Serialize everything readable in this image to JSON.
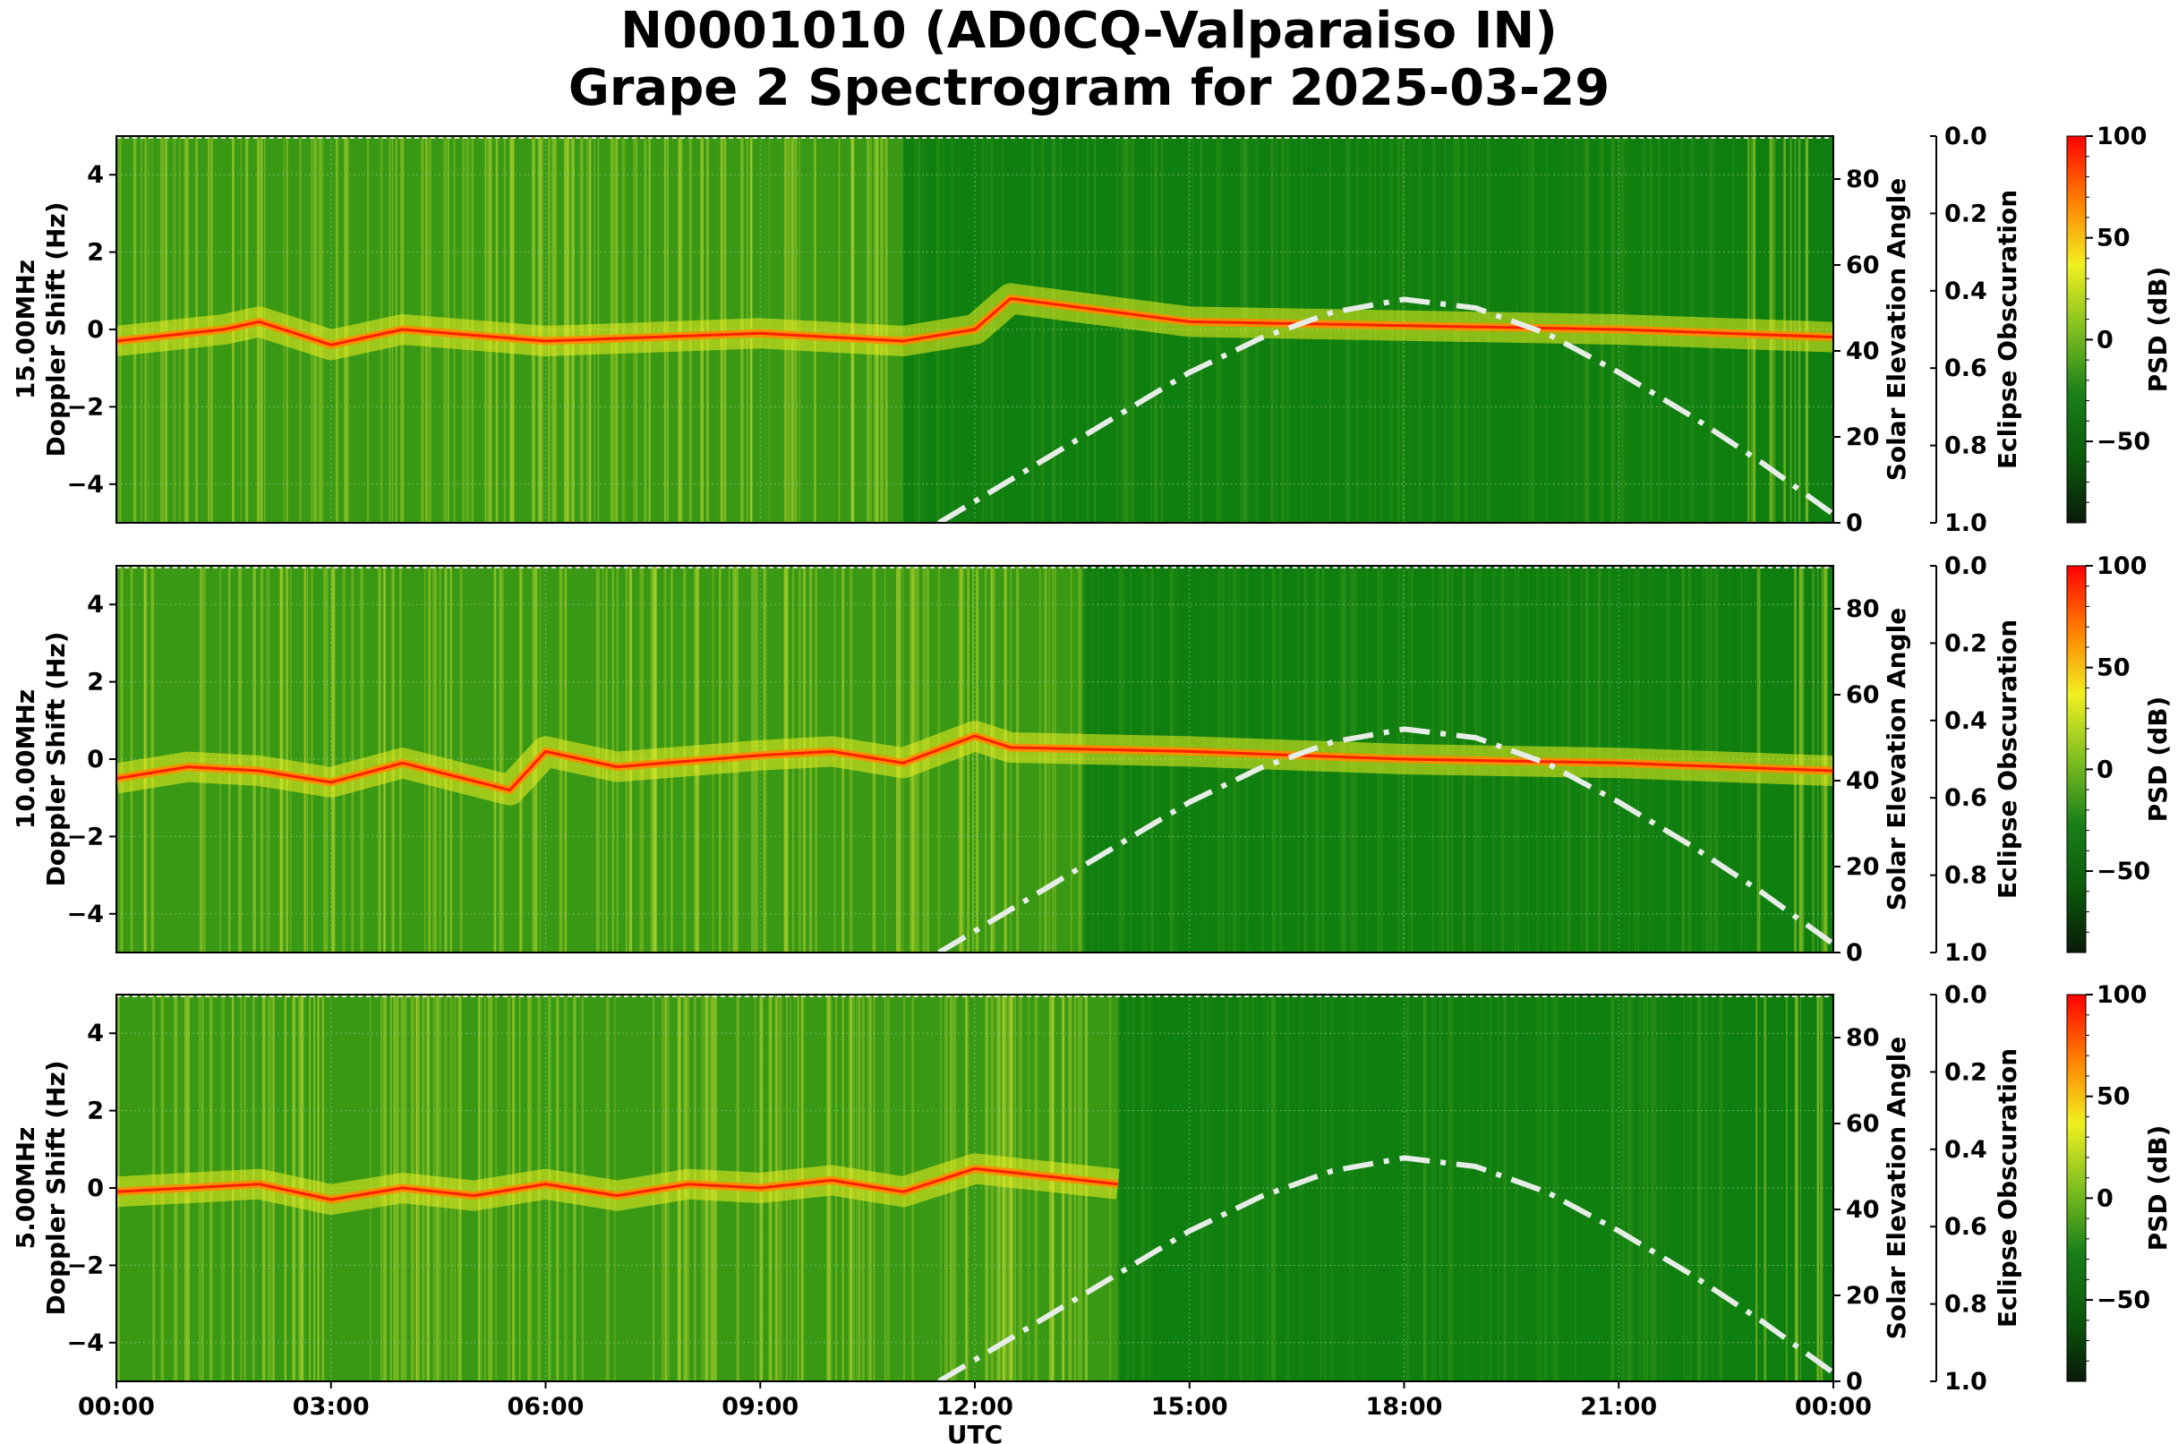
{
  "title_line1": "N0001010 (AD0CQ-Valparaiso IN)",
  "title_line2": "Grape 2 Spectrogram for 2025-03-29",
  "colors": {
    "background_green": "#0f7f0f",
    "elevation_curve": "#e6ece6",
    "colormap": [
      "#0a1a0a",
      "#0b5a0b",
      "#188018",
      "#7fbf20",
      "#f0f020",
      "#ff8000",
      "#ff0000"
    ]
  },
  "chart_data": [
    {
      "type": "heatmap",
      "panel": "15.00MHz",
      "ylabel_line1": "15.00MHz",
      "ylabel_line2": "Doppler Shift (Hz)",
      "xlabel": "",
      "ylim": [
        -5,
        5
      ],
      "y_ticks": [
        "4",
        "2",
        "0",
        "−2",
        "−4"
      ],
      "y_tick_values": [
        4,
        2,
        0,
        -2,
        -4
      ],
      "secondary_ylabel": "Solar Elevation Angle",
      "secondary_ylim": [
        0,
        90
      ],
      "secondary_ticks": [
        "80",
        "60",
        "40",
        "20",
        "0"
      ],
      "secondary_tick_values": [
        80,
        60,
        40,
        20,
        0
      ],
      "eclipse_label": "Eclipse Obscuration",
      "eclipse_ticks": [
        "0.0",
        "0.2",
        "0.4",
        "0.6",
        "0.8",
        "1.0"
      ],
      "eclipse_tick_values": [
        0,
        0.2,
        0.4,
        0.6,
        0.8,
        1.0
      ],
      "colorbar_label": "PSD (dB)",
      "colorbar_range": [
        -90,
        100
      ],
      "colorbar_ticks": [
        "100",
        "50",
        "0",
        "−50"
      ],
      "colorbar_tick_values": [
        100,
        50,
        0,
        -50
      ],
      "doppler_trace": {
        "hours": [
          0,
          1,
          1.5,
          2,
          3,
          4,
          6,
          9,
          11,
          12,
          12.5,
          15,
          18,
          21,
          24
        ],
        "hz": [
          -0.3,
          -0.1,
          0.0,
          0.2,
          -0.4,
          0.0,
          -0.3,
          -0.1,
          -0.3,
          0.0,
          0.8,
          0.2,
          0.1,
          0.0,
          -0.2
        ]
      },
      "solar_elevation": {
        "hours": [
          11.5,
          12,
          13,
          14,
          15,
          16,
          17,
          18,
          19,
          20,
          21,
          22,
          23,
          24
        ],
        "deg": [
          0,
          5,
          15,
          25,
          35,
          43,
          49,
          52,
          50,
          44,
          35,
          25,
          14,
          2
        ]
      }
    },
    {
      "type": "heatmap",
      "panel": "10.00MHz",
      "ylabel_line1": "10.00MHz",
      "ylabel_line2": "Doppler Shift (Hz)",
      "xlabel": "",
      "ylim": [
        -5,
        5
      ],
      "y_ticks": [
        "4",
        "2",
        "0",
        "−2",
        "−4"
      ],
      "y_tick_values": [
        4,
        2,
        0,
        -2,
        -4
      ],
      "secondary_ylabel": "Solar Elevation Angle",
      "secondary_ylim": [
        0,
        90
      ],
      "secondary_ticks": [
        "80",
        "60",
        "40",
        "20",
        "0"
      ],
      "secondary_tick_values": [
        80,
        60,
        40,
        20,
        0
      ],
      "eclipse_label": "Eclipse Obscuration",
      "eclipse_ticks": [
        "0.0",
        "0.2",
        "0.4",
        "0.6",
        "0.8",
        "1.0"
      ],
      "eclipse_tick_values": [
        0,
        0.2,
        0.4,
        0.6,
        0.8,
        1.0
      ],
      "colorbar_label": "PSD (dB)",
      "colorbar_range": [
        -90,
        100
      ],
      "colorbar_ticks": [
        "100",
        "50",
        "0",
        "−50"
      ],
      "colorbar_tick_values": [
        100,
        50,
        0,
        -50
      ],
      "doppler_trace": {
        "hours": [
          0,
          1,
          2,
          3,
          4,
          5.5,
          6,
          7,
          9,
          10,
          11,
          12,
          12.5,
          15,
          18,
          21,
          24
        ],
        "hz": [
          -0.5,
          -0.2,
          -0.3,
          -0.6,
          -0.1,
          -0.8,
          0.2,
          -0.2,
          0.1,
          0.2,
          -0.1,
          0.6,
          0.3,
          0.2,
          0.0,
          -0.1,
          -0.3
        ]
      },
      "solar_elevation": {
        "hours": [
          11.5,
          12,
          13,
          14,
          15,
          16,
          17,
          18,
          19,
          20,
          21,
          22,
          23,
          24
        ],
        "deg": [
          0,
          5,
          15,
          25,
          35,
          43,
          49,
          52,
          50,
          44,
          35,
          25,
          14,
          2
        ]
      }
    },
    {
      "type": "heatmap",
      "panel": "5.00MHz",
      "ylabel_line1": "5.00MHz",
      "ylabel_line2": "Doppler Shift (Hz)",
      "xlabel": "UTC",
      "ylim": [
        -5,
        5
      ],
      "y_ticks": [
        "4",
        "2",
        "0",
        "−2",
        "−4"
      ],
      "y_tick_values": [
        4,
        2,
        0,
        -2,
        -4
      ],
      "x_ticks": [
        "00:00",
        "03:00",
        "06:00",
        "09:00",
        "12:00",
        "15:00",
        "18:00",
        "21:00",
        "00:00"
      ],
      "x_tick_hours": [
        0,
        3,
        6,
        9,
        12,
        15,
        18,
        21,
        24
      ],
      "secondary_ylabel": "Solar Elevation Angle",
      "secondary_ylim": [
        0,
        90
      ],
      "secondary_ticks": [
        "80",
        "60",
        "40",
        "20",
        "0"
      ],
      "secondary_tick_values": [
        80,
        60,
        40,
        20,
        0
      ],
      "eclipse_label": "Eclipse Obscuration",
      "eclipse_ticks": [
        "0.0",
        "0.2",
        "0.4",
        "0.6",
        "0.8",
        "1.0"
      ],
      "eclipse_tick_values": [
        0,
        0.2,
        0.4,
        0.6,
        0.8,
        1.0
      ],
      "colorbar_label": "PSD (dB)",
      "colorbar_range": [
        -90,
        100
      ],
      "colorbar_ticks": [
        "100",
        "50",
        "0",
        "−50"
      ],
      "colorbar_tick_values": [
        100,
        50,
        0,
        -50
      ],
      "doppler_trace": {
        "hours": [
          0,
          1,
          2,
          3,
          4,
          5,
          6,
          7,
          8,
          9,
          10,
          11,
          12,
          13,
          14
        ],
        "hz": [
          -0.1,
          0.0,
          0.1,
          -0.3,
          0.0,
          -0.2,
          0.1,
          -0.2,
          0.1,
          0.0,
          0.2,
          -0.1,
          0.5,
          0.3,
          0.1
        ]
      },
      "solar_elevation": {
        "hours": [
          11.5,
          12,
          13,
          14,
          15,
          16,
          17,
          18,
          19,
          20,
          21,
          22,
          23,
          24
        ],
        "deg": [
          0,
          5,
          15,
          25,
          35,
          43,
          49,
          52,
          50,
          44,
          35,
          25,
          14,
          2
        ]
      }
    }
  ]
}
